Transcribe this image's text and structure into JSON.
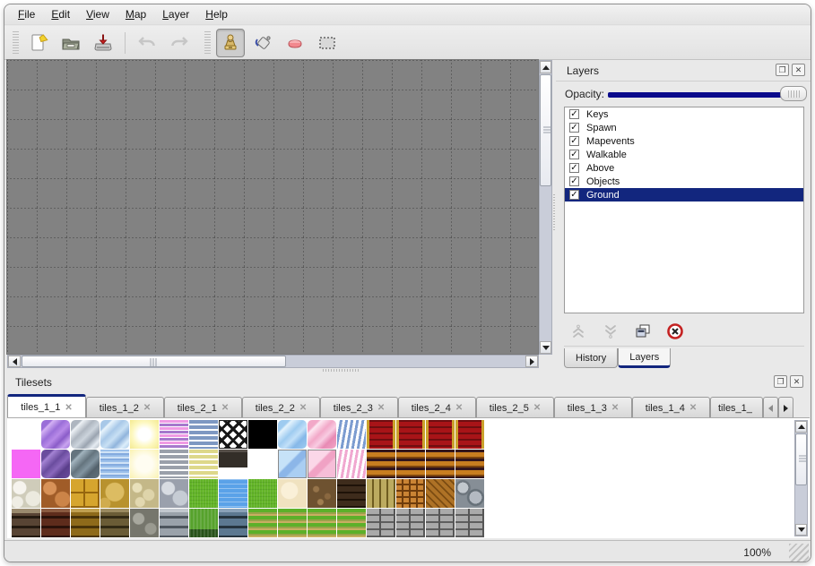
{
  "menu": {
    "items": [
      "File",
      "Edit",
      "View",
      "Map",
      "Layer",
      "Help"
    ]
  },
  "toolbar": {
    "icons": [
      "new-map-icon",
      "open-map-icon",
      "save-map-icon",
      "undo-icon",
      "redo-icon",
      "stamp-tool-icon",
      "fill-tool-icon",
      "eraser-tool-icon",
      "select-tool-icon"
    ],
    "active_tool": "stamp-tool"
  },
  "canvas": {
    "background": "#828282",
    "grid_color": "#3e3e3e",
    "cell_size": 33
  },
  "layers_panel": {
    "title": "Layers",
    "opacity_label": "Opacity:",
    "layers": [
      {
        "label": "Keys",
        "checked": true,
        "selected": false
      },
      {
        "label": "Spawn",
        "checked": true,
        "selected": false
      },
      {
        "label": "Mapevents",
        "checked": true,
        "selected": false
      },
      {
        "label": "Walkable",
        "checked": true,
        "selected": false
      },
      {
        "label": "Above",
        "checked": true,
        "selected": false
      },
      {
        "label": "Objects",
        "checked": true,
        "selected": false
      },
      {
        "label": "Ground",
        "checked": true,
        "selected": true
      }
    ],
    "action_icons": [
      "raise-layer-icon",
      "lower-layer-icon",
      "duplicate-layer-icon",
      "delete-layer-icon"
    ],
    "tabs": [
      {
        "label": "History",
        "active": false
      },
      {
        "label": "Layers",
        "active": true
      }
    ]
  },
  "tilesets_panel": {
    "title": "Tilesets",
    "tabs": [
      {
        "label": "tiles_1_1",
        "active": true,
        "truncated": false
      },
      {
        "label": "tiles_1_2",
        "active": false,
        "truncated": false
      },
      {
        "label": "tiles_2_1",
        "active": false,
        "truncated": false
      },
      {
        "label": "tiles_2_2",
        "active": false,
        "truncated": false
      },
      {
        "label": "tiles_2_3",
        "active": false,
        "truncated": false
      },
      {
        "label": "tiles_2_4",
        "active": false,
        "truncated": false
      },
      {
        "label": "tiles_2_5",
        "active": false,
        "truncated": false
      },
      {
        "label": "tiles_1_3",
        "active": false,
        "truncated": false
      },
      {
        "label": "tiles_1_4",
        "active": false,
        "truncated": false
      },
      {
        "label": "tiles_1_",
        "active": false,
        "truncated": true
      }
    ],
    "tab_close_glyph": "✕"
  },
  "palette": {
    "rows": [
      [
        "white",
        "crystal-purple",
        "crystal-silver",
        "crystal-blue",
        "glow-yellow",
        "stripes-pink",
        "stripes-blue",
        "lattice",
        "black",
        "crystal-ltblue",
        "crystal-pink",
        "banner-blue",
        "carpet-red",
        "carpet-red",
        "carpet-red",
        "carpet-red"
      ],
      [
        "magenta",
        "crystal-dkpurple",
        "crystal-dkgray",
        "water-soft",
        "glow-pale",
        "stripes-gray",
        "stripes-yellow",
        "sign-dark",
        "white",
        "pane-blue",
        "pane-pink",
        "banner-pink",
        "stripes-orange",
        "stripes-orange",
        "stripes-orange",
        "stripes-orange"
      ],
      [
        "cobble-white",
        "cobble-orange",
        "tiles-gold",
        "stone-yellow",
        "pebbles-beige",
        "stones-gray",
        "grass",
        "water",
        "grass",
        "sand-cream",
        "dirt",
        "planks-dark",
        "planks-vert",
        "brick-orange",
        "herringbone",
        "logs-gray"
      ],
      [
        "wall-brown",
        "wall-redbrown",
        "wall-gold",
        "wall-stone",
        "wall-pebble",
        "wall-gray",
        "hedge",
        "wall-blue",
        "path-grass",
        "path-grass",
        "path-grass",
        "path-grass",
        "planks-gray",
        "planks-gray",
        "planks-gray",
        "planks-gray"
      ]
    ]
  },
  "status_bar": {
    "zoom_level": "100%"
  },
  "glyphs": {
    "check": "✓",
    "float": "❐",
    "close": "✕"
  },
  "colors": {
    "accent_navy": "#12267e",
    "canvas_gray": "#828282",
    "delete_red": "#c42222"
  }
}
